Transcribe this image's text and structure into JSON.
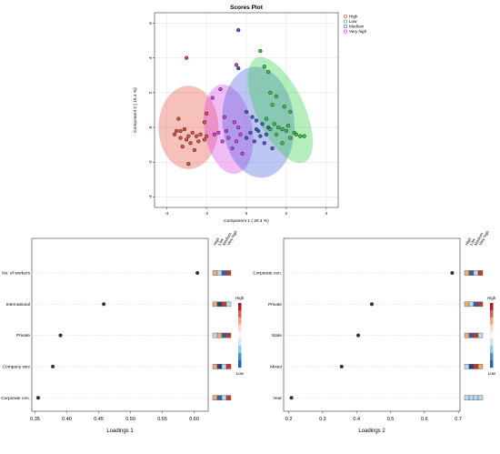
{
  "colors": {
    "high": "#e74c3c",
    "low": "#2ecc40",
    "medium": "#3b5bdb",
    "very_high": "#d63be6",
    "grid": "#e6e6e6",
    "frame": "#333333"
  },
  "chart_data": [
    {
      "type": "scatter",
      "title": "Scores Plot",
      "xlabel": "Component 1 ( 20.4 %)",
      "ylabel": "Component 2 ( 15.4 %)",
      "xlim": [
        -4.6,
        4.6
      ],
      "ylim": [
        -4.6,
        6.6
      ],
      "xticks": [
        -4,
        -2,
        0,
        2,
        4
      ],
      "yticks": [
        -4,
        -2,
        0,
        2,
        4,
        6
      ],
      "legend_position": "top-right",
      "legend": [
        "High",
        "Low",
        "Medium",
        "Very high"
      ],
      "ellipses": [
        {
          "name": "High",
          "cx": -2.9,
          "cy": 0.0,
          "rx": 1.5,
          "ry": 2.4,
          "angle": 0
        },
        {
          "name": "Very high",
          "cx": -0.9,
          "cy": -0.1,
          "rx": 1.2,
          "ry": 2.6,
          "angle": 10
        },
        {
          "name": "Medium",
          "cx": 0.6,
          "cy": 0.3,
          "rx": 1.8,
          "ry": 3.2,
          "angle": 5
        },
        {
          "name": "Low",
          "cx": 1.7,
          "cy": 1.0,
          "rx": 1.2,
          "ry": 3.3,
          "angle": 25
        }
      ],
      "series": [
        {
          "name": "High",
          "points": [
            [
              -3.0,
              4.0
            ],
            [
              -2.0,
              0.8
            ],
            [
              -2.1,
              0.3
            ],
            [
              -3.4,
              0.5
            ],
            [
              -3.5,
              -0.2
            ],
            [
              -3.3,
              -0.6
            ],
            [
              -3.1,
              -0.1
            ],
            [
              -2.9,
              -0.5
            ],
            [
              -2.7,
              -0.3
            ],
            [
              -2.5,
              -0.5
            ],
            [
              -2.3,
              -0.4
            ],
            [
              -2.1,
              -0.7
            ],
            [
              -2.8,
              -0.9
            ],
            [
              -3.2,
              -1.1
            ],
            [
              -2.6,
              -1.3
            ],
            [
              -2.9,
              -2.1
            ],
            [
              -3.6,
              -0.4
            ],
            [
              -2.4,
              -0.8
            ],
            [
              -2.0,
              -0.5
            ],
            [
              -3.0,
              -0.7
            ],
            [
              -3.3,
              -0.2
            ]
          ]
        },
        {
          "name": "Low",
          "points": [
            [
              0.7,
              4.4
            ],
            [
              0.9,
              3.5
            ],
            [
              1.1,
              3.2
            ],
            [
              1.5,
              1.8
            ],
            [
              1.2,
              2.0
            ],
            [
              1.9,
              1.2
            ],
            [
              2.2,
              0.9
            ],
            [
              1.4,
              0.2
            ],
            [
              1.6,
              0.0
            ],
            [
              1.8,
              -0.1
            ],
            [
              2.0,
              -0.2
            ],
            [
              2.4,
              -0.3
            ],
            [
              2.7,
              -0.5
            ],
            [
              1.2,
              -0.1
            ],
            [
              2.1,
              0.1
            ],
            [
              1.5,
              -0.4
            ],
            [
              2.2,
              -0.6
            ],
            [
              1.8,
              -0.9
            ],
            [
              2.5,
              -0.4
            ],
            [
              2.9,
              -0.5
            ],
            [
              1.3,
              1.3
            ],
            [
              1.0,
              0.5
            ]
          ]
        },
        {
          "name": "Medium",
          "points": [
            [
              -0.4,
              5.6
            ],
            [
              -0.4,
              3.4
            ],
            [
              0.0,
              0.9
            ],
            [
              0.5,
              0.4
            ],
            [
              0.8,
              0.2
            ],
            [
              0.5,
              -0.1
            ],
            [
              0.2,
              -0.3
            ],
            [
              0.7,
              -0.5
            ],
            [
              1.0,
              -0.4
            ],
            [
              0.4,
              -0.8
            ],
            [
              0.9,
              -0.9
            ],
            [
              1.3,
              -1.2
            ],
            [
              0.0,
              -0.6
            ],
            [
              0.6,
              -0.2
            ],
            [
              1.1,
              0.0
            ],
            [
              0.3,
              0.6
            ]
          ]
        },
        {
          "name": "Very high",
          "points": [
            [
              -0.5,
              3.6
            ],
            [
              -1.3,
              2.2
            ],
            [
              -1.7,
              1.7
            ],
            [
              -1.1,
              0.6
            ],
            [
              -0.6,
              0.3
            ],
            [
              -1.4,
              -0.3
            ],
            [
              -0.9,
              -0.6
            ],
            [
              -0.5,
              -0.8
            ],
            [
              -1.2,
              -0.8
            ],
            [
              -0.3,
              -0.4
            ],
            [
              -0.7,
              -1.2
            ],
            [
              -1.6,
              -0.4
            ],
            [
              -0.2,
              -1.5
            ],
            [
              -1.0,
              -0.2
            ],
            [
              -0.4,
              0.0
            ]
          ]
        }
      ]
    },
    {
      "type": "dot",
      "xlabel": "Loadings 1",
      "xlim": [
        0.345,
        0.622
      ],
      "xticks": [
        "0.35",
        "0.40",
        "0.45",
        "0.50",
        "0.55",
        "0.60"
      ],
      "categories": [
        "No. of workers",
        "International",
        "Private",
        "Company size",
        "Corporate cen."
      ],
      "values": [
        0.605,
        0.458,
        0.39,
        0.378,
        0.355
      ],
      "groups": [
        "High",
        "Low",
        "Medium",
        "Very high"
      ],
      "legend_title": "High",
      "legend_low": "Low",
      "heat": [
        [
          "#f4a96b",
          "#b8d9ee",
          "#3b5ba6",
          "#c0392b"
        ],
        [
          "#f4a96b",
          "#2c3e80",
          "#c0392b",
          "#b8d9ee"
        ],
        [
          "#b8d9ee",
          "#f4a96b",
          "#3b5ba6",
          "#c0392b"
        ],
        [
          "#f4a96b",
          "#2c3e80",
          "#b8d9ee",
          "#c0392b"
        ],
        [
          "#f4a96b",
          "#3b5ba6",
          "#b8d9ee",
          "#c0392b"
        ]
      ]
    },
    {
      "type": "dot",
      "xlabel": "Loadings 2",
      "xlim": [
        0.185,
        0.705
      ],
      "xticks": [
        "0.2",
        "0.3",
        "0.4",
        "0.5",
        "0.6",
        "0.7"
      ],
      "categories": [
        "Corporate cen.",
        "Private",
        "State",
        "Mixed",
        "Year"
      ],
      "values": [
        0.682,
        0.445,
        0.405,
        0.356,
        0.208
      ],
      "groups": [
        "High",
        "Low",
        "Medium",
        "Very high"
      ],
      "legend_title": "High",
      "legend_low": "Low",
      "heat": [
        [
          "#f4a96b",
          "#3b5ba6",
          "#b8d9ee",
          "#c0392b"
        ],
        [
          "#f4a96b",
          "#b8d9ee",
          "#3b5ba6",
          "#c0392b"
        ],
        [
          "#f4a96b",
          "#3b5ba6",
          "#c0392b",
          "#b8d9ee"
        ],
        [
          "#b8d9ee",
          "#2c3e80",
          "#c0392b",
          "#f4a96b"
        ],
        [
          "#b8d9ee",
          "#b8d9ee",
          "#b8d9ee",
          "#b8d9ee"
        ]
      ]
    }
  ]
}
